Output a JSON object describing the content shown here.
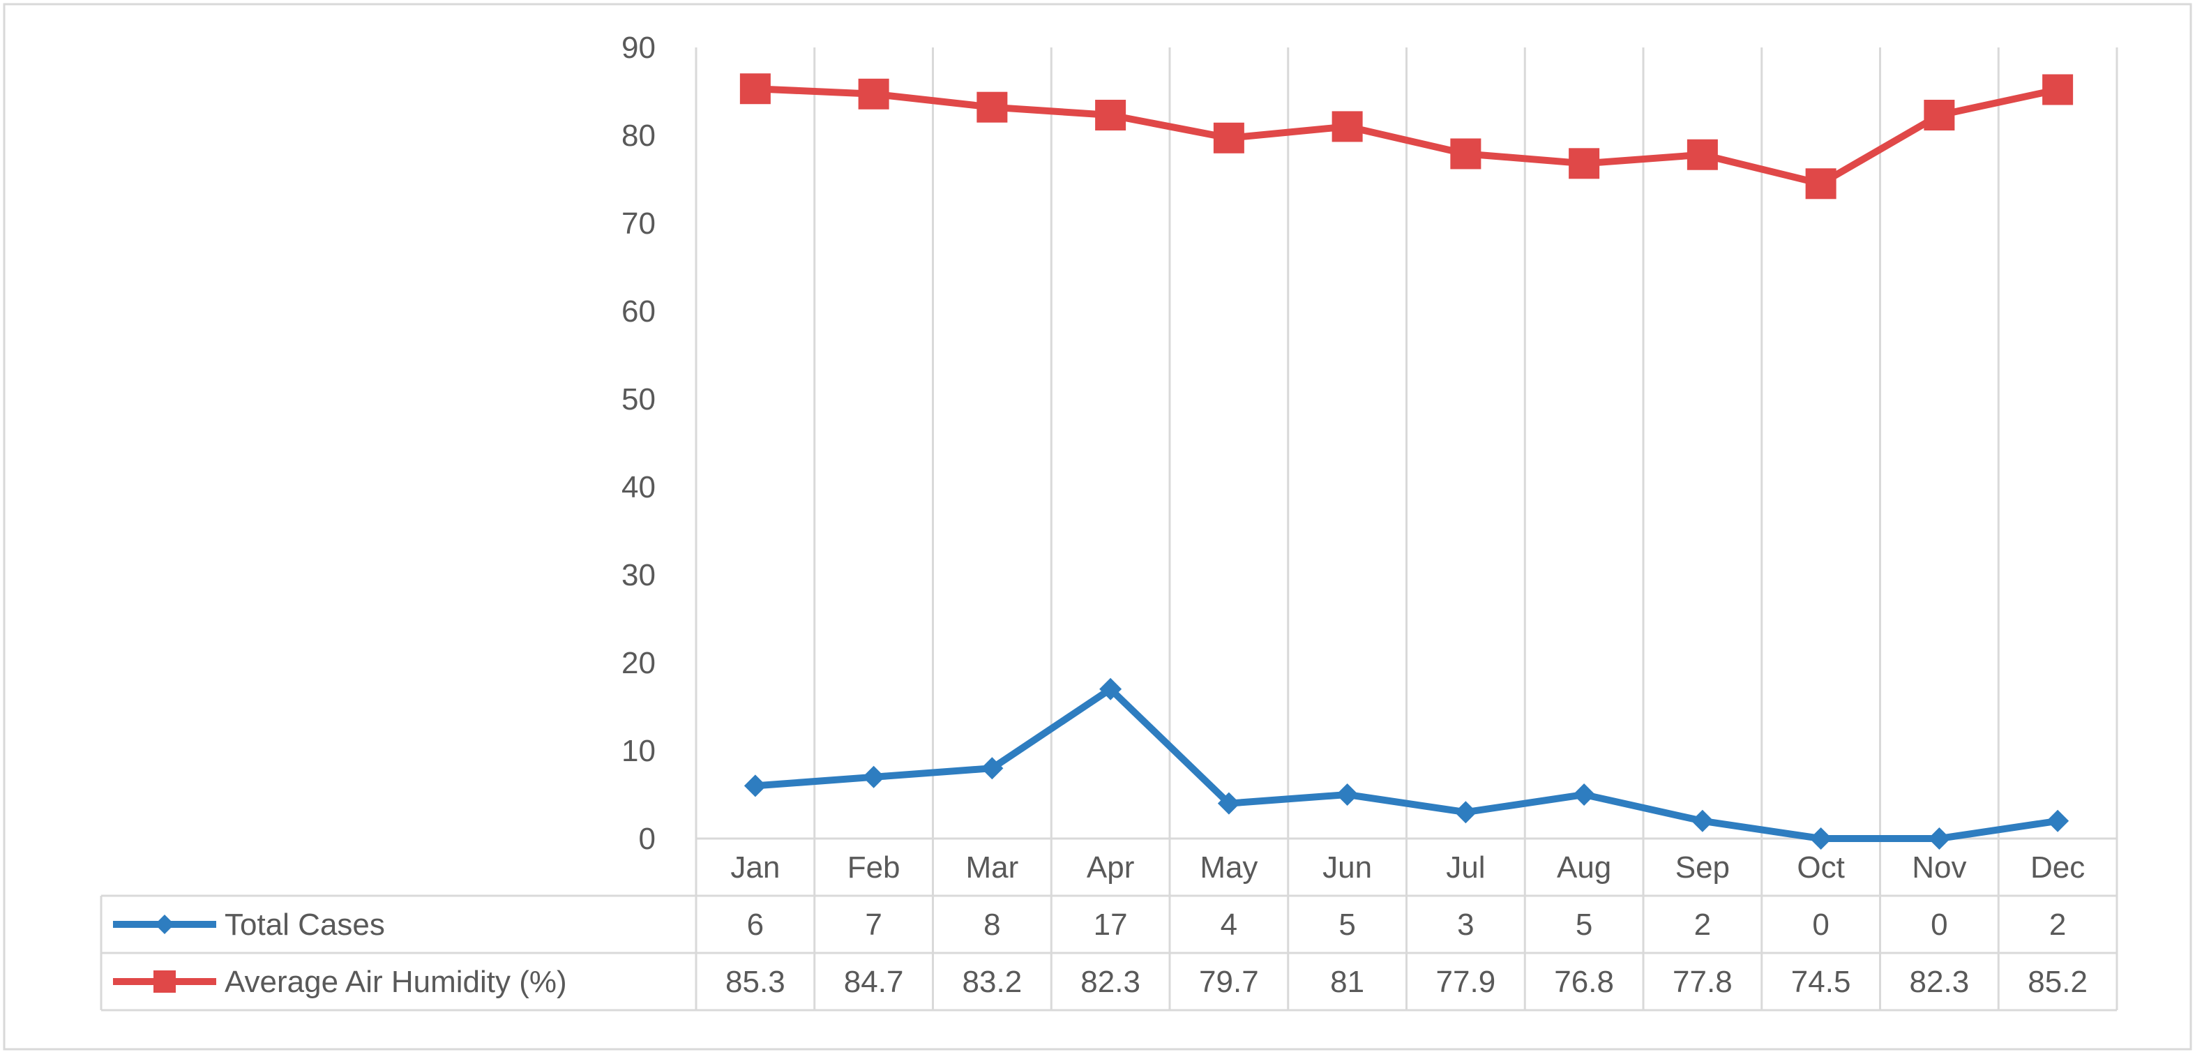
{
  "chart_data": {
    "type": "line",
    "categories": [
      "Jan",
      "Feb",
      "Mar",
      "Apr",
      "May",
      "Jun",
      "Jul",
      "Aug",
      "Sep",
      "Oct",
      "Nov",
      "Dec"
    ],
    "series": [
      {
        "name": "Total Cases",
        "values": [
          6,
          7,
          8,
          17,
          4,
          5,
          3,
          5,
          2,
          0,
          0,
          2
        ],
        "labels": [
          "6",
          "7",
          "8",
          "17",
          "4",
          "5",
          "3",
          "5",
          "2",
          "0",
          "0",
          "2"
        ],
        "color": "#2E7DC0",
        "marker": "diamond"
      },
      {
        "name": "Average Air Humidity (%)",
        "values": [
          85.3,
          84.7,
          83.2,
          82.3,
          79.7,
          81,
          77.9,
          76.8,
          77.8,
          74.5,
          82.3,
          85.2
        ],
        "labels": [
          "85.3",
          "84.7",
          "83.2",
          "82.3",
          "79.7",
          "81",
          "77.9",
          "76.8",
          "77.8",
          "74.5",
          "82.3",
          "85.2"
        ],
        "color": "#E04848",
        "marker": "square"
      }
    ],
    "yticks": [
      "0",
      "10",
      "20",
      "30",
      "40",
      "50",
      "60",
      "70",
      "80",
      "90"
    ],
    "ylim": [
      0,
      90
    ],
    "grid": "vertical",
    "legend": "data-table-bottom",
    "title": "",
    "xlabel": "",
    "ylabel": ""
  }
}
